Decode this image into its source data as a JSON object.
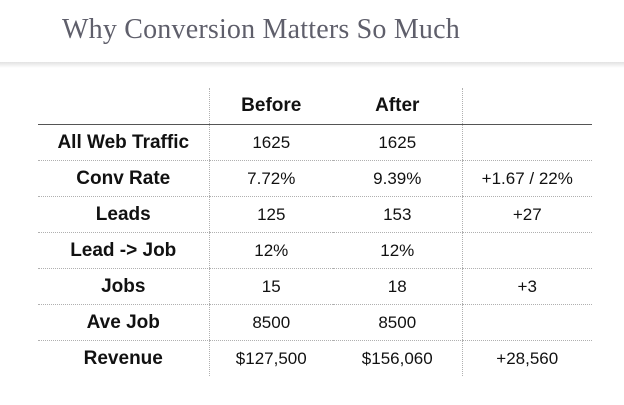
{
  "title": "Why Conversion Matters So Much",
  "table": {
    "headers": [
      "",
      "Before",
      "After",
      ""
    ],
    "rows": [
      {
        "label": "All Web Traffic",
        "before": "1625",
        "after": "1625",
        "change": ""
      },
      {
        "label": "Conv Rate",
        "before": "7.72%",
        "after": "9.39%",
        "change": "+1.67 / 22%"
      },
      {
        "label": "Leads",
        "before": "125",
        "after": "153",
        "change": "+27"
      },
      {
        "label": "Lead -> Job",
        "before": "12%",
        "after": "12%",
        "change": ""
      },
      {
        "label": "Jobs",
        "before": "15",
        "after": "18",
        "change": "+3"
      },
      {
        "label": "Ave Job",
        "before": "8500",
        "after": "8500",
        "change": ""
      },
      {
        "label": "Revenue",
        "before": "$127,500",
        "after": "$156,060",
        "change": "+28,560"
      }
    ]
  }
}
